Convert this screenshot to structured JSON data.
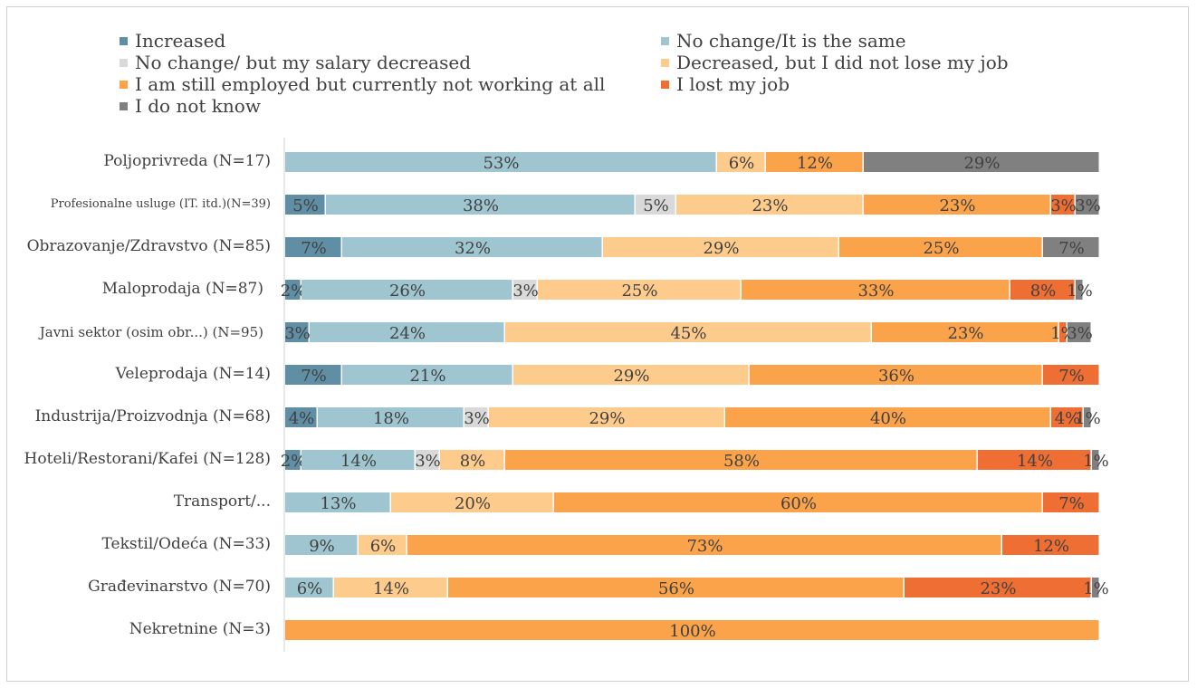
{
  "chart_data": {
    "type": "bar",
    "orientation": "horizontal",
    "stacked": true,
    "percent_stacked": true,
    "legend_position": "top",
    "grid": false,
    "xlim": [
      0,
      100
    ],
    "categories": [
      "Poljoprivreda (N=17)",
      "Profesionalne usluge (IT. itd.)(N=39)",
      "Obrazovanje/Zdravstvo (N=85)",
      "Maloprodaja (N=87)",
      "Javni sektor (osim obr...) (N=95)",
      "Veleprodaja (N=14)",
      "Industrija/Proizvodnja (N=68)",
      "Hoteli/Restorani/Kafei (N=128)",
      "Transport/...",
      "Tekstil/Odeća (N=33)",
      "Građevinarstvo (N=70)",
      "Nekretnine (N=3)"
    ],
    "series": [
      {
        "name": "Increased",
        "color": "#5f8ea5",
        "values": [
          0,
          5,
          7,
          2,
          3,
          7,
          4,
          2,
          0,
          0,
          0,
          0
        ]
      },
      {
        "name": "No change/It is the same",
        "color": "#9fc6d0",
        "values": [
          53,
          38,
          32,
          26,
          24,
          21,
          18,
          14,
          13,
          9,
          6,
          0
        ]
      },
      {
        "name": "No change/ but my salary decreased",
        "color": "#d9d9d9",
        "values": [
          0,
          5,
          0,
          3,
          0,
          0,
          3,
          3,
          0,
          0,
          0,
          0
        ]
      },
      {
        "name": "Decreased, but I did not lose my job",
        "color": "#fdcb8c",
        "values": [
          6,
          23,
          29,
          25,
          45,
          29,
          29,
          8,
          20,
          6,
          14,
          0
        ]
      },
      {
        "name": "I am still employed but currently not working at all",
        "color": "#fba34b",
        "values": [
          12,
          23,
          25,
          33,
          23,
          36,
          40,
          58,
          60,
          73,
          56,
          100
        ]
      },
      {
        "name": "I lost my job",
        "color": "#ee6e34",
        "values": [
          0,
          3,
          0,
          8,
          1,
          7,
          4,
          14,
          7,
          12,
          23,
          0
        ]
      },
      {
        "name": "I do not know",
        "color": "#808080",
        "values": [
          29,
          3,
          7,
          1,
          3,
          0,
          1,
          1,
          0,
          0,
          1,
          0
        ]
      }
    ],
    "data_label_suffix": "%"
  }
}
